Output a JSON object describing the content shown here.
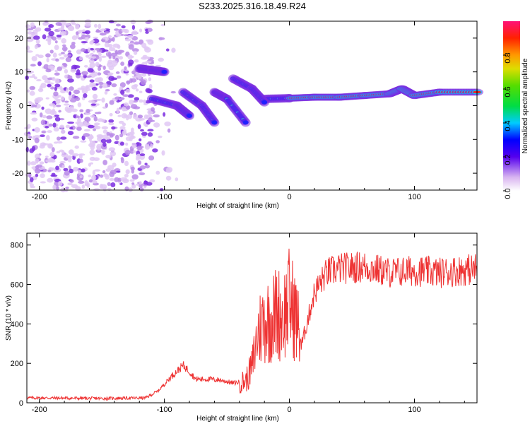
{
  "title": "S233.2025.316.18.49.R24",
  "chart_data": [
    {
      "type": "heatmap",
      "name": "spectrogram",
      "xlabel": "Height of straight line (km)",
      "ylabel": "Frequency (Hz)",
      "xlim": [
        -210,
        150
      ],
      "ylim": [
        -25,
        25
      ],
      "x_ticks": [
        -200,
        -100,
        0,
        100
      ],
      "y_ticks": [
        -20,
        -10,
        0,
        10,
        20
      ],
      "ridges": [
        {
          "x": [
            -20,
            0,
            20,
            40,
            60,
            80,
            90,
            100,
            120,
            150
          ],
          "y": [
            2,
            2.2,
            2.5,
            2.5,
            3,
            3.5,
            5,
            3,
            4,
            4
          ]
        },
        {
          "x": [
            -120,
            -110,
            -100
          ],
          "y": [
            11,
            10.5,
            10
          ]
        },
        {
          "x": [
            -110,
            -90,
            -80
          ],
          "y": [
            2,
            0,
            -3
          ]
        },
        {
          "x": [
            -85,
            -70,
            -60
          ],
          "y": [
            4,
            0,
            -5
          ]
        },
        {
          "x": [
            -60,
            -50,
            -35
          ],
          "y": [
            4,
            2,
            -5
          ]
        },
        {
          "x": [
            -45,
            -30,
            -20
          ],
          "y": [
            8,
            5,
            1
          ]
        }
      ],
      "colorbar": {
        "label": "Normalized spectral amplitude",
        "ticks": [
          "0.0",
          "0.2",
          "0.4",
          "0.6",
          "0.8"
        ],
        "range": [
          0,
          1
        ]
      }
    },
    {
      "type": "line",
      "name": "snr",
      "xlabel": "Height of straight line (km)",
      "ylabel": "SNR (10 * v/v)",
      "xlim": [
        -210,
        150
      ],
      "ylim": [
        0,
        860
      ],
      "x_ticks": [
        -200,
        -100,
        0,
        100
      ],
      "y_ticks": [
        0,
        200,
        400,
        600,
        800
      ],
      "color": "#ee3333",
      "x": [
        -210,
        -200,
        -150,
        -115,
        -105,
        -95,
        -85,
        -80,
        -75,
        -65,
        -55,
        -45,
        -35,
        -30,
        -25,
        -20,
        -15,
        -10,
        -5,
        0,
        5,
        10,
        15,
        20,
        30,
        40,
        60,
        80,
        100,
        120,
        150
      ],
      "y": [
        25,
        25,
        22,
        25,
        60,
        130,
        190,
        160,
        120,
        120,
        115,
        100,
        110,
        180,
        360,
        420,
        420,
        460,
        440,
        520,
        440,
        300,
        430,
        560,
        660,
        680,
        690,
        660,
        670,
        660,
        680
      ]
    }
  ]
}
